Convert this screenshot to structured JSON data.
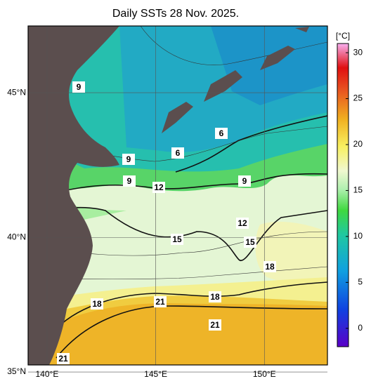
{
  "title": "Daily SSTs 28 Nov. 2025.",
  "lon_lim": [
    139.13,
    152.9
  ],
  "lat_lim": [
    35.27,
    47.17
  ],
  "lon_ticks": [
    {
      "value": 140,
      "label": "140°E"
    },
    {
      "value": 145,
      "label": "145°E"
    },
    {
      "value": 150,
      "label": "150°E"
    }
  ],
  "lat_ticks": [
    {
      "value": 35,
      "label": "35°N"
    },
    {
      "value": 40,
      "label": "40°N"
    },
    {
      "value": 45,
      "label": "45°N"
    }
  ],
  "contour_labels": [
    9,
    6,
    6,
    9,
    9,
    12,
    9,
    12,
    15,
    15,
    18,
    18,
    18,
    21,
    21,
    21
  ],
  "colorbar": {
    "unit": "[°C]",
    "lim": [
      -2,
      31
    ],
    "ticks": [
      0,
      5,
      10,
      15,
      20,
      25,
      30
    ]
  }
}
